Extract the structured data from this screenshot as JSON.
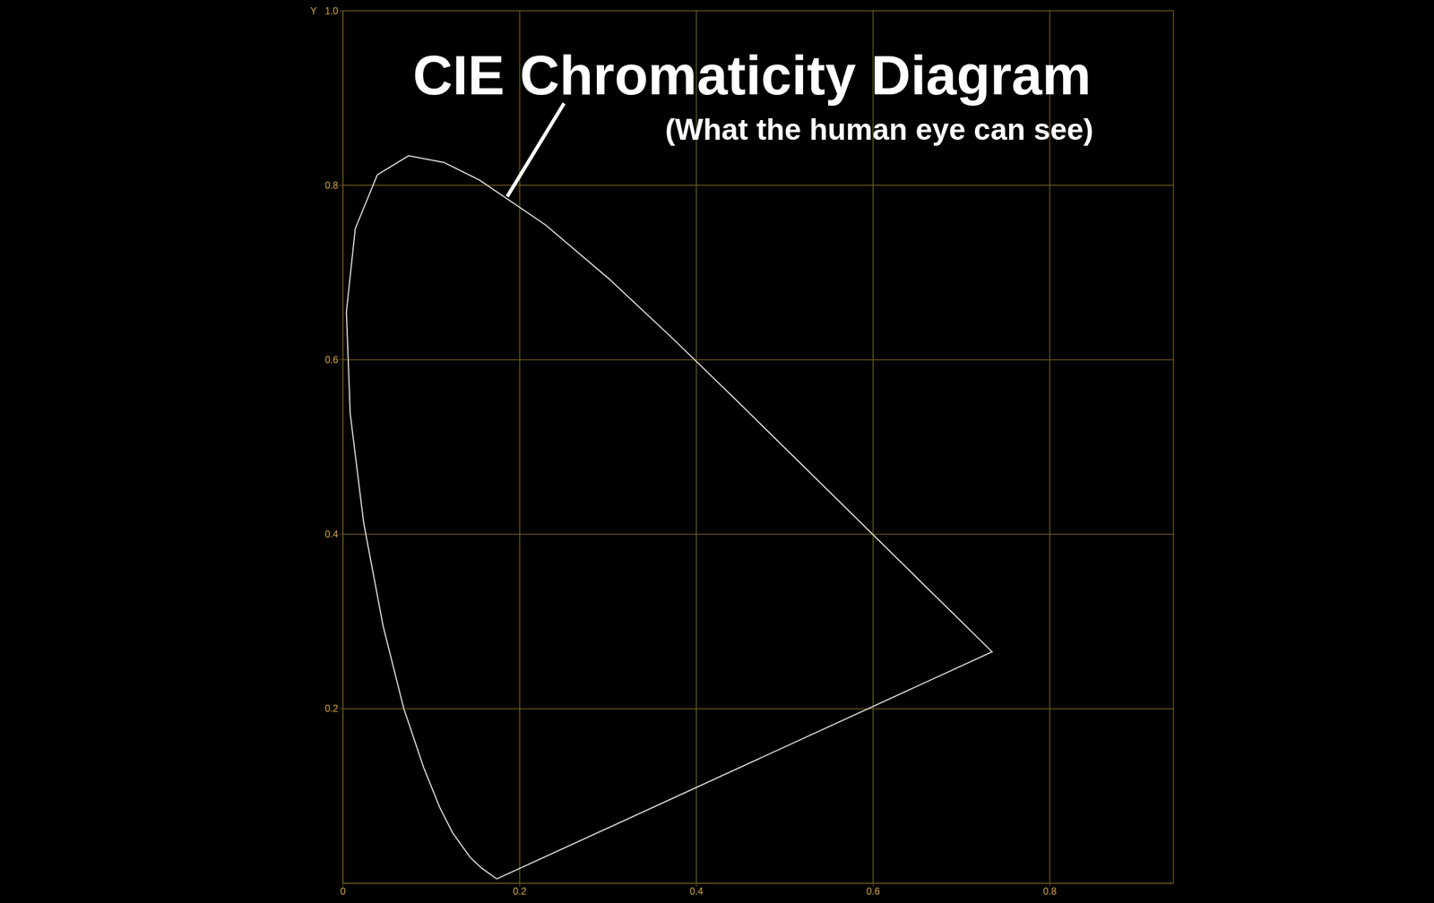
{
  "chart_data": {
    "type": "line",
    "title": "CIE Chromaticity Diagram",
    "subtitle": "(What the human eye can see)",
    "y_label": "Y",
    "x": [
      0.1741,
      0.1566,
      0.144,
      0.1241,
      0.1096,
      0.0913,
      0.0687,
      0.0454,
      0.0235,
      0.0082,
      0.0039,
      0.0139,
      0.0389,
      0.0743,
      0.1142,
      0.1547,
      0.2296,
      0.3016,
      0.3731,
      0.4441,
      0.5125,
      0.5752,
      0.627,
      0.6915,
      0.719,
      0.7347,
      0.1741
    ],
    "values": [
      0.005,
      0.0177,
      0.0297,
      0.0578,
      0.0868,
      0.1327,
      0.2007,
      0.295,
      0.4127,
      0.5384,
      0.6548,
      0.7502,
      0.812,
      0.8338,
      0.8262,
      0.8059,
      0.7543,
      0.6923,
      0.6245,
      0.5547,
      0.4866,
      0.4242,
      0.3725,
      0.3083,
      0.2809,
      0.2653,
      0.005
    ],
    "color": "#d9d9d9",
    "xlim": [
      0,
      0.94
    ],
    "xticks": [
      0,
      0.2,
      0.4,
      0.6,
      0.8
    ],
    "ylim": [
      0,
      1
    ],
    "yticks": [
      0.2,
      0.4,
      0.6,
      0.8,
      {
        "value": 1,
        "label": "1.0"
      }
    ],
    "grid": true
  }
}
